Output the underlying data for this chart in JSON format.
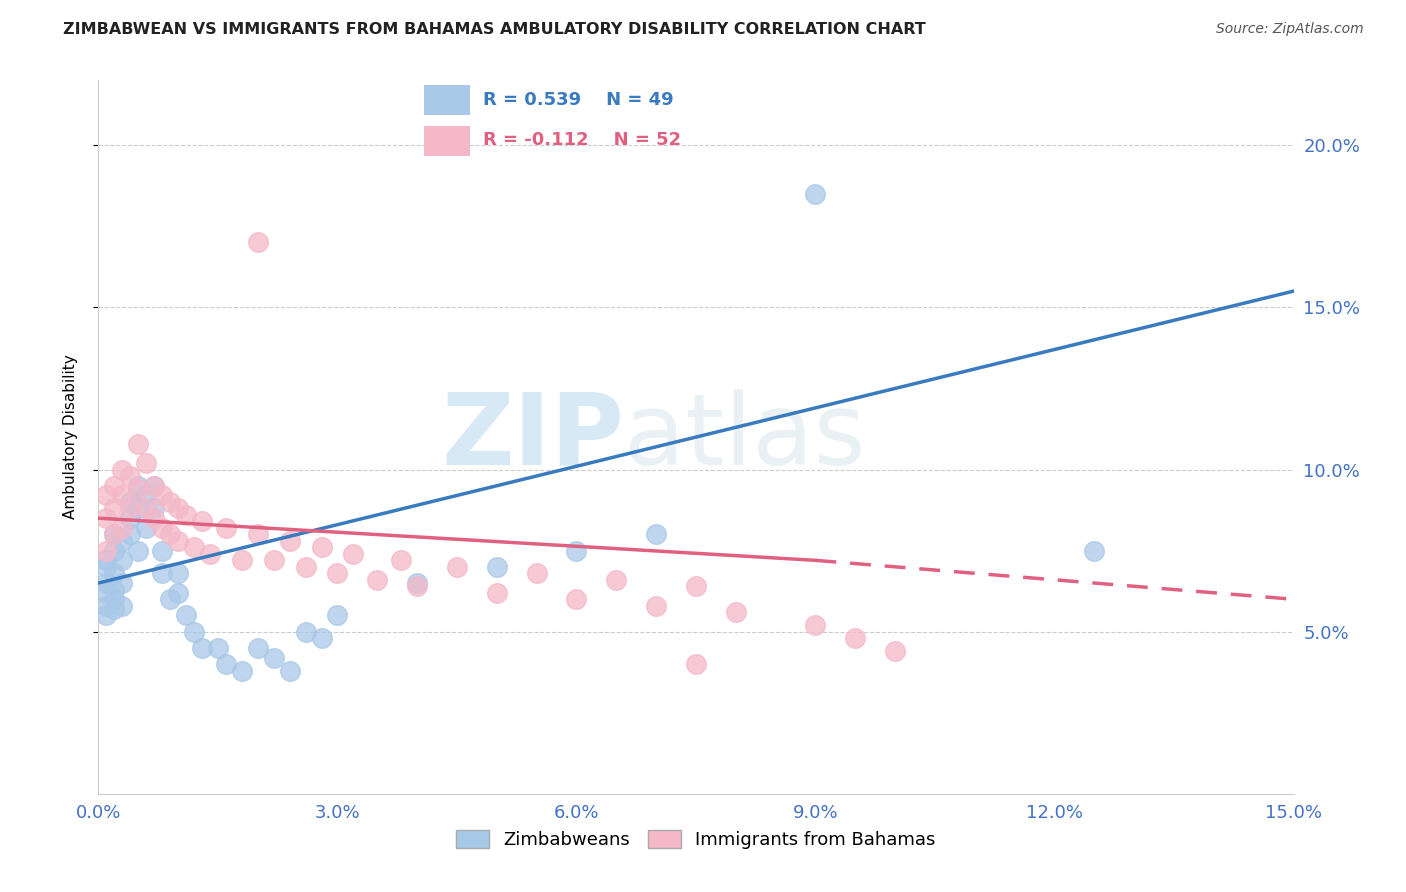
{
  "title": "ZIMBABWEAN VS IMMIGRANTS FROM BAHAMAS AMBULATORY DISABILITY CORRELATION CHART",
  "source": "Source: ZipAtlas.com",
  "ylabel": "Ambulatory Disability",
  "legend_labels": [
    "Zimbabweans",
    "Immigrants from Bahamas"
  ],
  "R_zimbabwean": 0.539,
  "N_zimbabwean": 49,
  "R_bahamas": -0.112,
  "N_bahamas": 52,
  "blue_color": "#a8c8e8",
  "pink_color": "#f4b8c8",
  "blue_line_color": "#3a7bbf",
  "pink_line_color": "#e06080",
  "axis_color": "#4472c4",
  "xlim": [
    0.0,
    0.15
  ],
  "ylim": [
    0.0,
    0.22
  ],
  "yticks": [
    0.05,
    0.1,
    0.15,
    0.2
  ],
  "xticks": [
    0.0,
    0.03,
    0.06,
    0.09,
    0.12,
    0.15
  ],
  "watermark_zip": "ZIP",
  "watermark_atlas": "atlas",
  "blue_x": [
    0.001,
    0.001,
    0.001,
    0.001,
    0.001,
    0.001,
    0.002,
    0.002,
    0.002,
    0.002,
    0.002,
    0.002,
    0.003,
    0.003,
    0.003,
    0.003,
    0.004,
    0.004,
    0.004,
    0.005,
    0.005,
    0.005,
    0.006,
    0.006,
    0.007,
    0.007,
    0.008,
    0.008,
    0.009,
    0.01,
    0.01,
    0.011,
    0.012,
    0.013,
    0.015,
    0.016,
    0.018,
    0.02,
    0.022,
    0.024,
    0.026,
    0.028,
    0.03,
    0.04,
    0.05,
    0.06,
    0.07,
    0.09,
    0.125
  ],
  "blue_y": [
    0.065,
    0.07,
    0.058,
    0.072,
    0.062,
    0.055,
    0.068,
    0.075,
    0.06,
    0.08,
    0.063,
    0.057,
    0.072,
    0.078,
    0.065,
    0.058,
    0.085,
    0.09,
    0.08,
    0.095,
    0.088,
    0.075,
    0.092,
    0.082,
    0.095,
    0.088,
    0.075,
    0.068,
    0.06,
    0.068,
    0.062,
    0.055,
    0.05,
    0.045,
    0.045,
    0.04,
    0.038,
    0.045,
    0.042,
    0.038,
    0.05,
    0.048,
    0.055,
    0.065,
    0.07,
    0.075,
    0.08,
    0.185,
    0.075
  ],
  "pink_x": [
    0.001,
    0.001,
    0.001,
    0.002,
    0.002,
    0.002,
    0.003,
    0.003,
    0.003,
    0.004,
    0.004,
    0.005,
    0.005,
    0.006,
    0.006,
    0.007,
    0.007,
    0.008,
    0.008,
    0.009,
    0.009,
    0.01,
    0.01,
    0.011,
    0.012,
    0.013,
    0.014,
    0.016,
    0.018,
    0.02,
    0.02,
    0.022,
    0.024,
    0.026,
    0.028,
    0.03,
    0.032,
    0.035,
    0.038,
    0.04,
    0.045,
    0.05,
    0.055,
    0.06,
    0.065,
    0.07,
    0.075,
    0.08,
    0.09,
    0.095,
    0.1,
    0.075
  ],
  "pink_y": [
    0.085,
    0.092,
    0.075,
    0.095,
    0.08,
    0.088,
    0.1,
    0.092,
    0.082,
    0.098,
    0.088,
    0.108,
    0.094,
    0.102,
    0.088,
    0.095,
    0.085,
    0.092,
    0.082,
    0.09,
    0.08,
    0.088,
    0.078,
    0.086,
    0.076,
    0.084,
    0.074,
    0.082,
    0.072,
    0.08,
    0.17,
    0.072,
    0.078,
    0.07,
    0.076,
    0.068,
    0.074,
    0.066,
    0.072,
    0.064,
    0.07,
    0.062,
    0.068,
    0.06,
    0.066,
    0.058,
    0.064,
    0.056,
    0.052,
    0.048,
    0.044,
    0.04
  ]
}
